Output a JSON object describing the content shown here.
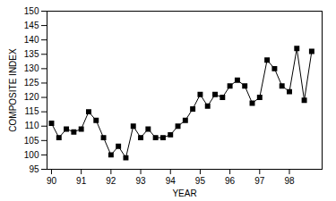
{
  "chart_data": {
    "type": "line",
    "x": [
      90.0,
      90.25,
      90.5,
      90.75,
      91.0,
      91.25,
      91.5,
      91.75,
      92.0,
      92.25,
      92.5,
      92.75,
      93.0,
      93.25,
      93.5,
      93.75,
      94.0,
      94.25,
      94.5,
      94.75,
      95.0,
      95.25,
      95.5,
      95.75,
      96.0,
      96.25,
      96.5,
      96.75,
      97.0,
      97.25,
      97.5,
      97.75,
      98.0,
      98.25,
      98.5,
      98.75
    ],
    "values": [
      111,
      106,
      109,
      108,
      109,
      115,
      112,
      106,
      100,
      103,
      99,
      110,
      106,
      109,
      106,
      106,
      107,
      110,
      112,
      116,
      121,
      117,
      121,
      120,
      124,
      126,
      124,
      118,
      120,
      133,
      130,
      124,
      122,
      137,
      119,
      136
    ],
    "xlabel": "YEAR",
    "ylabel": "COMPOSITE INDEX",
    "xlim": [
      89.85,
      99.1
    ],
    "ylim": [
      95,
      150
    ],
    "xticks": [
      90,
      91,
      92,
      93,
      94,
      95,
      96,
      97,
      98
    ],
    "yticks": [
      95,
      100,
      105,
      110,
      115,
      120,
      125,
      130,
      135,
      140,
      145,
      150
    ],
    "color": "#000000",
    "marker": "square",
    "grid": false
  }
}
